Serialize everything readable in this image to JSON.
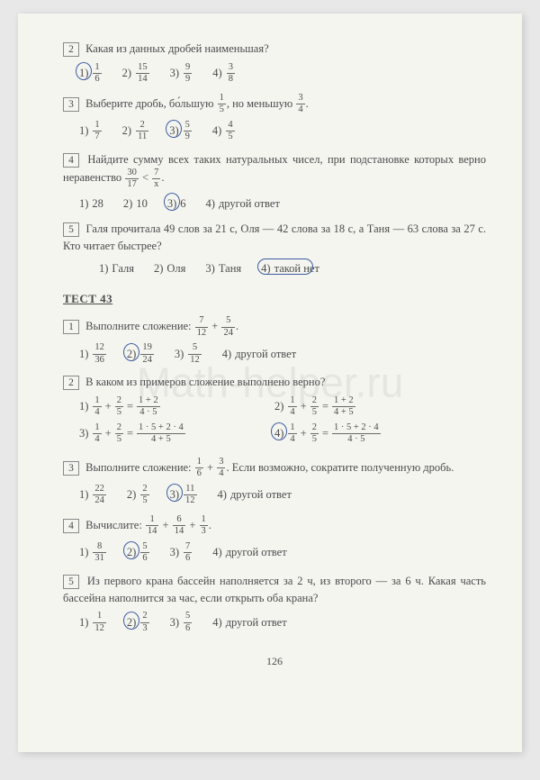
{
  "watermark": "Math-helper.ru",
  "page_number": "126",
  "test_title": "ТЕСТ 43",
  "other_answer": "другой ответ",
  "prev": {
    "q2": {
      "num": "2",
      "text": "Какая из данных дробей наименьшая?",
      "opts": [
        {
          "n": "1)",
          "frac": {
            "n": "1",
            "d": "6"
          }
        },
        {
          "n": "2)",
          "frac": {
            "n": "15",
            "d": "14"
          }
        },
        {
          "n": "3)",
          "frac": {
            "n": "9",
            "d": "9"
          }
        },
        {
          "n": "4)",
          "frac": {
            "n": "3",
            "d": "8"
          }
        }
      ],
      "circled": 0
    },
    "q3": {
      "num": "3",
      "text_a": "Выберите дробь, бо́льшую ",
      "frac_a": {
        "n": "1",
        "d": "5"
      },
      "text_b": ", но меньшую ",
      "frac_b": {
        "n": "3",
        "d": "4"
      },
      "text_c": ".",
      "opts": [
        {
          "n": "1)",
          "frac": {
            "n": "1",
            "d": "7"
          }
        },
        {
          "n": "2)",
          "frac": {
            "n": "2",
            "d": "11"
          }
        },
        {
          "n": "3)",
          "frac": {
            "n": "5",
            "d": "9"
          }
        },
        {
          "n": "4)",
          "frac": {
            "n": "4",
            "d": "5"
          }
        }
      ],
      "circled": 2
    },
    "q4": {
      "num": "4",
      "text_a": "Найдите сумму всех таких натуральных чисел, при подстановке которых верно неравенство ",
      "frac_a": {
        "n": "30",
        "d": "17"
      },
      "lt": " < ",
      "frac_b": {
        "n": "7",
        "d": "x"
      },
      "text_b": ".",
      "opts": [
        {
          "n": "1)",
          "val": "28"
        },
        {
          "n": "2)",
          "val": "10"
        },
        {
          "n": "3)",
          "val": "6"
        },
        {
          "n": "4)",
          "val": "другой ответ"
        }
      ],
      "circled": 2
    },
    "q5": {
      "num": "5",
      "text": "Галя прочитала 49 слов за 21 с, Оля — 42 слова за 18 с, а Таня — 63 слова за 27 с. Кто читает быстрее?",
      "opts": [
        {
          "n": "1)",
          "val": "Галя"
        },
        {
          "n": "2)",
          "val": "Оля"
        },
        {
          "n": "3)",
          "val": "Таня"
        },
        {
          "n": "4)",
          "val": "такой нет"
        }
      ],
      "circled": 3
    }
  },
  "t43": {
    "q1": {
      "num": "1",
      "text_a": "Выполните сложение: ",
      "frac_a": {
        "n": "7",
        "d": "12"
      },
      "plus": " + ",
      "frac_b": {
        "n": "5",
        "d": "24"
      },
      "text_b": ".",
      "opts": [
        {
          "n": "1)",
          "frac": {
            "n": "12",
            "d": "36"
          }
        },
        {
          "n": "2)",
          "frac": {
            "n": "19",
            "d": "24"
          }
        },
        {
          "n": "3)",
          "frac": {
            "n": "5",
            "d": "12"
          }
        },
        {
          "n": "4)",
          "val": "другой ответ"
        }
      ],
      "circled": 1
    },
    "q2": {
      "num": "2",
      "text": "В каком из примеров сложение выполнено верно?",
      "opts": [
        {
          "n": "1)",
          "lhs": [
            {
              "n": "1",
              "d": "4"
            },
            {
              "n": "2",
              "d": "5"
            }
          ],
          "rhs": {
            "n": "1 + 2",
            "d": "4 · 5"
          }
        },
        {
          "n": "2)",
          "lhs": [
            {
              "n": "1",
              "d": "4"
            },
            {
              "n": "2",
              "d": "5"
            }
          ],
          "rhs": {
            "n": "1 + 2",
            "d": "4 + 5"
          }
        },
        {
          "n": "3)",
          "lhs": [
            {
              "n": "1",
              "d": "4"
            },
            {
              "n": "2",
              "d": "5"
            }
          ],
          "rhs": {
            "n": "1 · 5 + 2 · 4",
            "d": "4 + 5"
          }
        },
        {
          "n": "4)",
          "lhs": [
            {
              "n": "1",
              "d": "4"
            },
            {
              "n": "2",
              "d": "5"
            }
          ],
          "rhs": {
            "n": "1 · 5 + 2 · 4",
            "d": "4 · 5"
          }
        }
      ],
      "circled": 3
    },
    "q3": {
      "num": "3",
      "text_a": "Выполните сложение: ",
      "frac_a": {
        "n": "1",
        "d": "6"
      },
      "plus": " + ",
      "frac_b": {
        "n": "3",
        "d": "4"
      },
      "text_b": ". Если возможно, сократите полученную дробь.",
      "opts": [
        {
          "n": "1)",
          "frac": {
            "n": "22",
            "d": "24"
          }
        },
        {
          "n": "2)",
          "frac": {
            "n": "2",
            "d": "5"
          }
        },
        {
          "n": "3)",
          "frac": {
            "n": "11",
            "d": "12"
          }
        },
        {
          "n": "4)",
          "val": "другой ответ"
        }
      ],
      "circled": 2
    },
    "q4": {
      "num": "4",
      "text_a": "Вычислите: ",
      "frac_a": {
        "n": "1",
        "d": "14"
      },
      "p1": " + ",
      "frac_b": {
        "n": "6",
        "d": "14"
      },
      "p2": " + ",
      "frac_c": {
        "n": "1",
        "d": "3"
      },
      "text_b": ".",
      "opts": [
        {
          "n": "1)",
          "frac": {
            "n": "8",
            "d": "31"
          }
        },
        {
          "n": "2)",
          "frac": {
            "n": "5",
            "d": "6"
          }
        },
        {
          "n": "3)",
          "frac": {
            "n": "7",
            "d": "6"
          }
        },
        {
          "n": "4)",
          "val": "другой ответ"
        }
      ],
      "circled": 1
    },
    "q5": {
      "num": "5",
      "text": "Из первого крана бассейн наполняется за 2 ч, из второго — за 6 ч. Какая часть бассейна наполнится за час, если открыть оба крана?",
      "opts": [
        {
          "n": "1)",
          "frac": {
            "n": "1",
            "d": "12"
          }
        },
        {
          "n": "2)",
          "frac": {
            "n": "2",
            "d": "3"
          }
        },
        {
          "n": "3)",
          "frac": {
            "n": "5",
            "d": "6"
          }
        },
        {
          "n": "4)",
          "val": "другой ответ"
        }
      ],
      "circled": 1
    }
  }
}
